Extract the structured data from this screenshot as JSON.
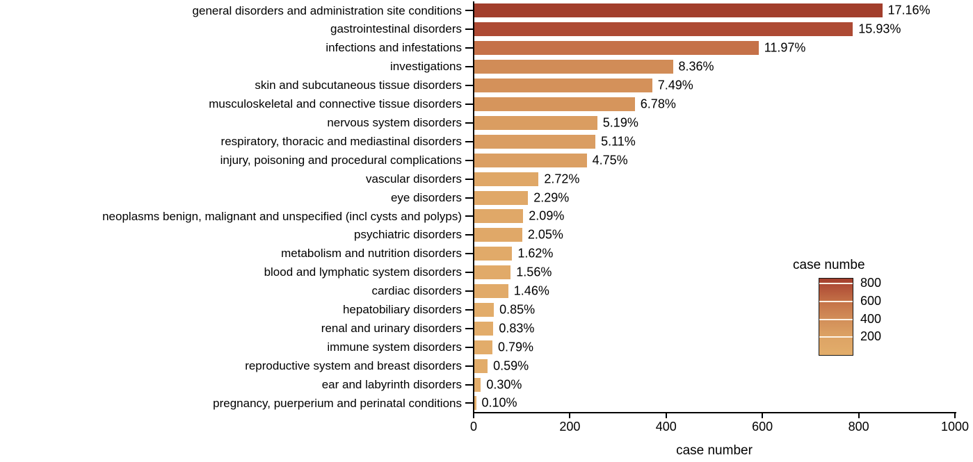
{
  "chart_data": {
    "type": "bar",
    "orientation": "horizontal",
    "title": "",
    "xlabel": "case number",
    "ylabel": "",
    "xlim": [
      0,
      1000
    ],
    "x_ticks": [
      0,
      200,
      400,
      600,
      800,
      1000
    ],
    "grid": false,
    "categories": [
      "general disorders and administration site conditions",
      "gastrointestinal disorders",
      "infections and infestations",
      "investigations",
      "skin and subcutaneous tissue disorders",
      "musculoskeletal and connective tissue disorders",
      "nervous system disorders",
      "respiratory, thoracic and mediastinal disorders",
      "injury, poisoning and procedural complications",
      "vascular disorders",
      "eye disorders",
      "neoplasms benign, malignant and unspecified (incl cysts and polyps)",
      "psychiatric disorders",
      "metabolism and nutrition disorders",
      "blood and lymphatic system disorders",
      "cardiac disorders",
      "hepatobiliary disorders",
      "renal and urinary disorders",
      "immune system disorders",
      "reproductive system and breast disorders",
      "ear and labyrinth disorders",
      "pregnancy, puerperium and perinatal conditions"
    ],
    "values": [
      849,
      788,
      592,
      414,
      371,
      335,
      257,
      253,
      235,
      135,
      113,
      103,
      101,
      80,
      77,
      72,
      42,
      41,
      39,
      29,
      15,
      5
    ],
    "percent_labels": [
      "17.16%",
      "15.93%",
      "11.97%",
      "8.36%",
      "7.49%",
      "6.78%",
      "5.19%",
      "5.11%",
      "4.75%",
      "2.72%",
      "2.29%",
      "2.09%",
      "2.05%",
      "1.62%",
      "1.56%",
      "1.46%",
      "0.85%",
      "0.83%",
      "0.79%",
      "0.59%",
      "0.30%",
      "0.10%"
    ],
    "colorbar": {
      "title": "case numbe",
      "ticks": [
        800,
        600,
        400,
        200
      ],
      "vmin": 0,
      "vmax": 850
    },
    "colormap_stops": [
      [
        0,
        "#e3ae6b"
      ],
      [
        200,
        "#dda365"
      ],
      [
        400,
        "#d28e58"
      ],
      [
        600,
        "#c47047"
      ],
      [
        800,
        "#ac4833"
      ],
      [
        860,
        "#a03c2a"
      ]
    ],
    "legend_position": "right"
  }
}
